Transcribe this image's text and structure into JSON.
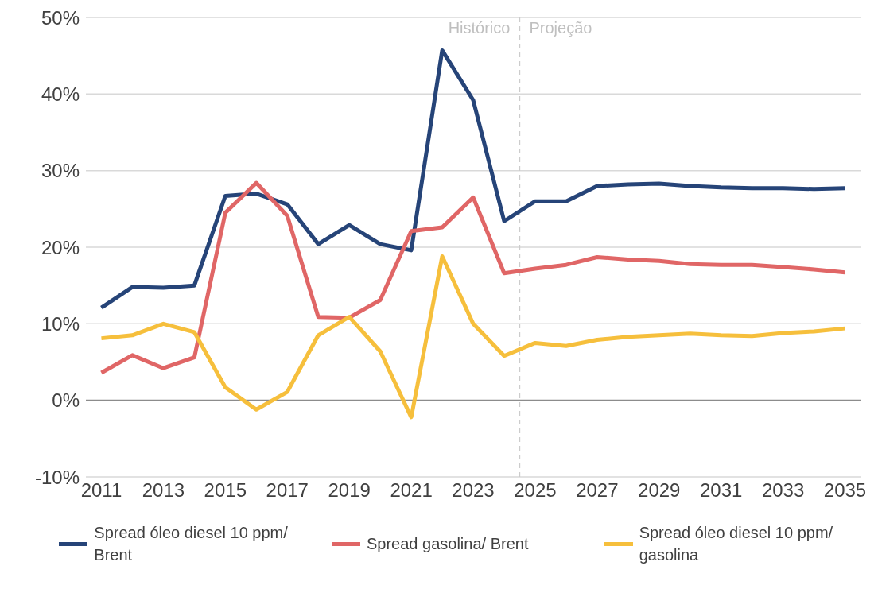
{
  "chart_data": {
    "type": "line",
    "x": [
      2011,
      2012,
      2013,
      2014,
      2015,
      2016,
      2017,
      2018,
      2019,
      2020,
      2021,
      2022,
      2023,
      2024,
      2025,
      2026,
      2027,
      2028,
      2029,
      2030,
      2031,
      2032,
      2033,
      2034,
      2035
    ],
    "series": [
      {
        "name": "Spread óleo diesel 10 ppm/ Brent",
        "color": "#264478",
        "values": [
          12.1,
          14.8,
          14.7,
          15.0,
          26.7,
          27.0,
          25.6,
          20.4,
          22.9,
          20.4,
          19.6,
          45.7,
          39.2,
          23.4,
          26.0,
          26.0,
          28.0,
          28.2,
          28.3,
          28.0,
          27.8,
          27.7,
          27.7,
          27.6,
          27.7
        ]
      },
      {
        "name": "Spread gasolina/ Brent",
        "color": "#e06666",
        "values": [
          3.6,
          5.9,
          4.2,
          5.6,
          24.5,
          28.4,
          24.1,
          10.9,
          10.8,
          13.1,
          22.1,
          22.6,
          26.5,
          16.6,
          17.2,
          17.7,
          18.7,
          18.4,
          18.2,
          17.8,
          17.7,
          17.7,
          17.4,
          17.1,
          16.7
        ]
      },
      {
        "name": "Spread óleo diesel 10 ppm/ gasolina",
        "color": "#f6bf3c",
        "values": [
          8.1,
          8.5,
          10.0,
          8.9,
          1.7,
          -1.2,
          1.1,
          8.5,
          10.9,
          6.4,
          -2.2,
          18.8,
          10.0,
          5.8,
          7.5,
          7.1,
          7.9,
          8.3,
          8.5,
          8.7,
          8.5,
          8.4,
          8.8,
          9.0,
          9.4
        ]
      }
    ],
    "xlim": [
      2010.5,
      2035.5
    ],
    "xticks": [
      2011,
      2013,
      2015,
      2017,
      2019,
      2021,
      2023,
      2025,
      2027,
      2029,
      2031,
      2033,
      2035
    ],
    "ylim": [
      -10,
      50
    ],
    "yticks": [
      {
        "value": -10,
        "label": "-10%"
      },
      {
        "value": 0,
        "label": "0%"
      },
      {
        "value": 10,
        "label": "10%"
      },
      {
        "value": 20,
        "label": "20%"
      },
      {
        "value": 30,
        "label": "30%"
      },
      {
        "value": 40,
        "label": "40%"
      },
      {
        "value": 50,
        "label": "50%"
      }
    ],
    "grid": "y",
    "legend": "bottom",
    "marker": "none",
    "line_style": "solid",
    "ref_lines": [
      {
        "axis": "x",
        "value": 2024.5,
        "color": "#cccccc",
        "line_style": "dashed"
      },
      {
        "axis": "y",
        "value": 0,
        "color": "#8c8c8c",
        "line_style": "solid"
      }
    ],
    "annotations": [
      "Histórico",
      "Projeção"
    ]
  }
}
